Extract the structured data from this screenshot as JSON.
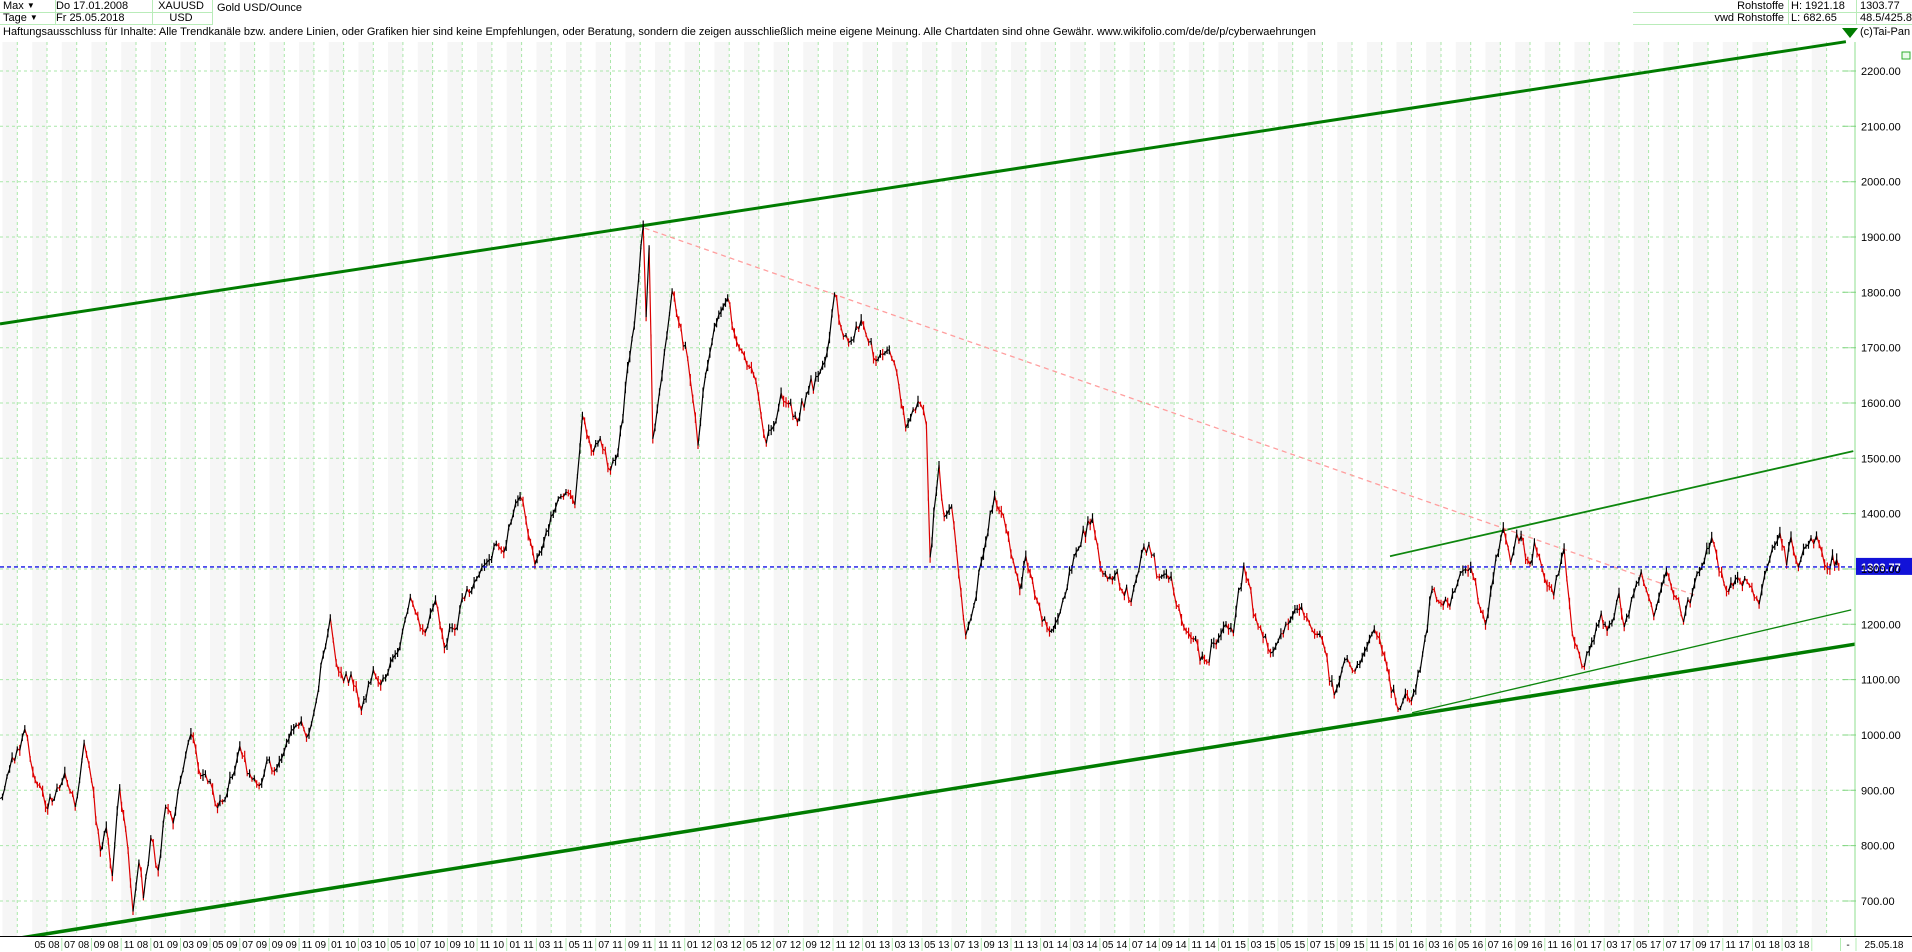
{
  "header": {
    "range_label": "Max",
    "period_label": "Tage",
    "dropdown_glyph": "▼",
    "start_date": "Do 17.01.2008",
    "end_date": "Fr 25.05.2018",
    "symbol": "XAUUSD",
    "currency": "USD",
    "instrument": "Gold USD/Ounce",
    "feed_line1": "Rohstoffe",
    "feed_line2": "vwd Rohstoffe",
    "high_label": "H: 1921.18",
    "low_label": "L: 682.65",
    "last_price_text": "1303.77",
    "change_info": "48.5/425.8",
    "copyright": "(c)Tai-Pan"
  },
  "disclaimer": "Haftungsausschluss für Inhalte: Alle Trendkanäle bzw. andere Linien, oder Grafiken hier sind keine Empfehlungen, oder Beratung, sondern die zeigen ausschließlich meine eigene Meinung. Alle Chartdaten sind ohne Gewähr.  www.wikifolio.com/de/de/p/cyberwaehrungen",
  "chart_data": {
    "type": "line",
    "title": "Gold USD/Ounce (XAUUSD), daily, 17.01.2008 - 25.05.2018",
    "grid": true,
    "legend": false,
    "colors": {
      "up": "#000000",
      "down": "#dd0000",
      "grid": "#a9e7a9",
      "trend": "#007c00",
      "trend_minor": "#0d860d",
      "pink_line": "#ff9e9e",
      "price_line": "#1515e6",
      "price_label_bg": "#1212d8"
    },
    "y_axis": {
      "tick_labels": [
        "2200.00",
        "2100.00",
        "2000.00",
        "1900.00",
        "1800.00",
        "1700.00",
        "1600.00",
        "1500.00",
        "1400.00",
        "1300.00",
        "1200.00",
        "1100.00",
        "1000.00",
        "900.00",
        "800.00",
        "700.00"
      ],
      "tick_values": [
        2200,
        2100,
        2000,
        1900,
        1800,
        1700,
        1600,
        1500,
        1400,
        1300,
        1200,
        1100,
        1000,
        900,
        800,
        700
      ],
      "ylim": [
        650,
        2255
      ]
    },
    "x_axis": {
      "tick_labels": [
        "05 08",
        "07 08",
        "09 08",
        "11 08",
        "01 09",
        "03 09",
        "05 09",
        "07 09",
        "09 09",
        "11 09",
        "01 10",
        "03 10",
        "05 10",
        "07 10",
        "09 10",
        "11 10",
        "01 11",
        "03 11",
        "05 11",
        "07 11",
        "09 11",
        "11 11",
        "01 12",
        "03 12",
        "05 12",
        "07 12",
        "09 12",
        "11 12",
        "01 13",
        "03 13",
        "05 13",
        "07 13",
        "09 13",
        "11 13",
        "01 14",
        "03 14",
        "05 14",
        "07 14",
        "09 14",
        "11 14",
        "01 15",
        "03 15",
        "05 15",
        "07 15",
        "09 15",
        "11 15",
        "01 16",
        "03 16",
        "05 16",
        "07 16",
        "09 16",
        "11 16",
        "01 17",
        "03 17",
        "05 17",
        "07 17",
        "09 17",
        "11 17",
        "01 18",
        "03 18"
      ],
      "end_dash": "-",
      "end_label": "25.05.18"
    },
    "last_price": 1303.77,
    "last_price_label": "1303.77",
    "series": [
      {
        "name": "XAUUSD",
        "x_unit": "months since 2008-01",
        "points": [
          [
            0.85,
            885
          ],
          [
            1.3,
            925
          ],
          [
            2.0,
            975
          ],
          [
            2.5,
            1011
          ],
          [
            3.05,
            933
          ],
          [
            3.5,
            909
          ],
          [
            3.9,
            871
          ],
          [
            4.5,
            885
          ],
          [
            5.2,
            932
          ],
          [
            5.9,
            870
          ],
          [
            6.5,
            986
          ],
          [
            7.0,
            918
          ],
          [
            7.6,
            790
          ],
          [
            8.0,
            833
          ],
          [
            8.4,
            745
          ],
          [
            8.9,
            905
          ],
          [
            9.3,
            830
          ],
          [
            9.8,
            681
          ],
          [
            10.2,
            770
          ],
          [
            10.5,
            705
          ],
          [
            11.0,
            814
          ],
          [
            11.5,
            755
          ],
          [
            12.0,
            870
          ],
          [
            12.5,
            840
          ],
          [
            13.0,
            919
          ],
          [
            13.7,
            1002
          ],
          [
            14.2,
            940
          ],
          [
            15.0,
            916
          ],
          [
            15.5,
            868
          ],
          [
            16.0,
            883
          ],
          [
            17.0,
            980
          ],
          [
            17.5,
            930
          ],
          [
            18.3,
            908
          ],
          [
            19.0,
            955
          ],
          [
            19.5,
            940
          ],
          [
            20.8,
            1018
          ],
          [
            21.5,
            995
          ],
          [
            22.0,
            1040
          ],
          [
            23.1,
            1212
          ],
          [
            23.5,
            1130
          ],
          [
            24.0,
            1097
          ],
          [
            24.5,
            1110
          ],
          [
            25.2,
            1044
          ],
          [
            26.0,
            1118
          ],
          [
            26.5,
            1090
          ],
          [
            27.0,
            1113
          ],
          [
            27.8,
            1160
          ],
          [
            28.5,
            1249
          ],
          [
            29.0,
            1215
          ],
          [
            29.5,
            1185
          ],
          [
            30.2,
            1244
          ],
          [
            30.8,
            1157
          ],
          [
            31.5,
            1190
          ],
          [
            32.0,
            1248
          ],
          [
            32.8,
            1275
          ],
          [
            33.5,
            1307
          ],
          [
            34.3,
            1346
          ],
          [
            34.8,
            1330
          ],
          [
            35.3,
            1385
          ],
          [
            35.9,
            1431
          ],
          [
            36.3,
            1388
          ],
          [
            36.9,
            1308
          ],
          [
            37.5,
            1348
          ],
          [
            38.3,
            1411
          ],
          [
            39.0,
            1439
          ],
          [
            39.6,
            1416
          ],
          [
            40.1,
            1577
          ],
          [
            40.7,
            1515
          ],
          [
            41.3,
            1536
          ],
          [
            42.0,
            1478
          ],
          [
            42.5,
            1510
          ],
          [
            43.0,
            1628
          ],
          [
            43.6,
            1740
          ],
          [
            43.9,
            1826
          ],
          [
            44.2,
            1921
          ],
          [
            44.4,
            1755
          ],
          [
            44.6,
            1881
          ],
          [
            44.85,
            1535
          ],
          [
            45.3,
            1620
          ],
          [
            45.8,
            1722
          ],
          [
            46.15,
            1802
          ],
          [
            46.6,
            1746
          ],
          [
            47.2,
            1680
          ],
          [
            47.9,
            1523
          ],
          [
            48.4,
            1650
          ],
          [
            49.0,
            1737
          ],
          [
            49.9,
            1790
          ],
          [
            50.5,
            1711
          ],
          [
            51.2,
            1668
          ],
          [
            51.8,
            1640
          ],
          [
            52.5,
            1527
          ],
          [
            53.0,
            1558
          ],
          [
            53.5,
            1618
          ],
          [
            54.0,
            1598
          ],
          [
            54.6,
            1565
          ],
          [
            55.2,
            1615
          ],
          [
            56.0,
            1648
          ],
          [
            56.6,
            1692
          ],
          [
            57.1,
            1796
          ],
          [
            57.7,
            1720
          ],
          [
            58.4,
            1715
          ],
          [
            58.9,
            1750
          ],
          [
            59.9,
            1676
          ],
          [
            60.8,
            1696
          ],
          [
            61.3,
            1655
          ],
          [
            61.9,
            1555
          ],
          [
            62.4,
            1588
          ],
          [
            62.9,
            1598
          ],
          [
            63.3,
            1560
          ],
          [
            63.55,
            1321
          ],
          [
            63.8,
            1402
          ],
          [
            64.15,
            1488
          ],
          [
            64.5,
            1394
          ],
          [
            65.0,
            1413
          ],
          [
            65.95,
            1180
          ],
          [
            66.5,
            1234
          ],
          [
            67.0,
            1313
          ],
          [
            67.9,
            1433
          ],
          [
            68.5,
            1396
          ],
          [
            69.0,
            1327
          ],
          [
            69.6,
            1263
          ],
          [
            70.0,
            1324
          ],
          [
            70.6,
            1253
          ],
          [
            71.6,
            1187
          ],
          [
            72.0,
            1202
          ],
          [
            72.5,
            1244
          ],
          [
            73.4,
            1330
          ],
          [
            74.5,
            1392
          ],
          [
            75.2,
            1291
          ],
          [
            76.0,
            1288
          ],
          [
            76.5,
            1260
          ],
          [
            77.1,
            1240
          ],
          [
            77.8,
            1327
          ],
          [
            78.3,
            1345
          ],
          [
            79.0,
            1285
          ],
          [
            79.8,
            1287
          ],
          [
            80.5,
            1208
          ],
          [
            81.3,
            1173
          ],
          [
            82.2,
            1132
          ],
          [
            83.0,
            1175
          ],
          [
            83.5,
            1200
          ],
          [
            84.0,
            1184
          ],
          [
            84.7,
            1307
          ],
          [
            85.5,
            1213
          ],
          [
            86.5,
            1148
          ],
          [
            87.2,
            1183
          ],
          [
            87.7,
            1200
          ],
          [
            88.6,
            1232
          ],
          [
            89.3,
            1190
          ],
          [
            90.0,
            1171
          ],
          [
            90.8,
            1072
          ],
          [
            91.5,
            1135
          ],
          [
            92.2,
            1115
          ],
          [
            93.5,
            1191
          ],
          [
            94.2,
            1142
          ],
          [
            95.1,
            1046
          ],
          [
            95.6,
            1075
          ],
          [
            96.0,
            1061
          ],
          [
            96.6,
            1118
          ],
          [
            97.4,
            1263
          ],
          [
            98.0,
            1238
          ],
          [
            98.6,
            1232
          ],
          [
            99.3,
            1292
          ],
          [
            100.0,
            1303
          ],
          [
            101.0,
            1199
          ],
          [
            101.7,
            1320
          ],
          [
            102.2,
            1375
          ],
          [
            102.7,
            1312
          ],
          [
            103.1,
            1364
          ],
          [
            104.0,
            1309
          ],
          [
            104.3,
            1349
          ],
          [
            105.15,
            1270
          ],
          [
            105.6,
            1252
          ],
          [
            106.3,
            1337
          ],
          [
            106.85,
            1183
          ],
          [
            107.5,
            1124
          ],
          [
            108.0,
            1152
          ],
          [
            108.8,
            1220
          ],
          [
            109.2,
            1188
          ],
          [
            110.0,
            1257
          ],
          [
            110.35,
            1195
          ],
          [
            111.5,
            1295
          ],
          [
            112.35,
            1214
          ],
          [
            113.2,
            1296
          ],
          [
            114.35,
            1204
          ],
          [
            115.1,
            1274
          ],
          [
            116.25,
            1357
          ],
          [
            117.25,
            1260
          ],
          [
            118.0,
            1285
          ],
          [
            118.8,
            1270
          ],
          [
            119.45,
            1236
          ],
          [
            120.0,
            1303
          ],
          [
            120.85,
            1366
          ],
          [
            121.3,
            1307
          ],
          [
            121.6,
            1358
          ],
          [
            122.1,
            1303
          ],
          [
            122.95,
            1356
          ],
          [
            123.5,
            1345
          ],
          [
            124.05,
            1301
          ],
          [
            124.4,
            1326
          ],
          [
            124.82,
            1303.77
          ]
        ]
      }
    ],
    "trend_lines": [
      {
        "name": "upper-channel-line",
        "t1": 0.83,
        "p1": 1743,
        "t2": 125.3,
        "p2": 2253,
        "width": 3,
        "style": "solid",
        "color": "trend",
        "marker_end": "triangle"
      },
      {
        "name": "lower-channel-line",
        "t1": 0.83,
        "p1": 627,
        "t2": 125.9,
        "p2": 1164,
        "width": 3.5,
        "style": "solid",
        "color": "trend"
      },
      {
        "name": "mid-resistance-line",
        "t1": 94.56,
        "p1": 1323,
        "t2": 125.8,
        "p2": 1513,
        "width": 1.8,
        "style": "solid",
        "color": "trend_minor"
      },
      {
        "name": "support-line-2016",
        "t1": 96.05,
        "p1": 1040,
        "t2": 125.66,
        "p2": 1226,
        "width": 1.3,
        "style": "solid",
        "color": "trend_minor"
      },
      {
        "name": "downtrend-from-peak",
        "t1": 44.3,
        "p1": 1916,
        "t2": 115.3,
        "p2": 1251,
        "width": 1.3,
        "style": "dashed",
        "color": "pink_line"
      }
    ]
  }
}
